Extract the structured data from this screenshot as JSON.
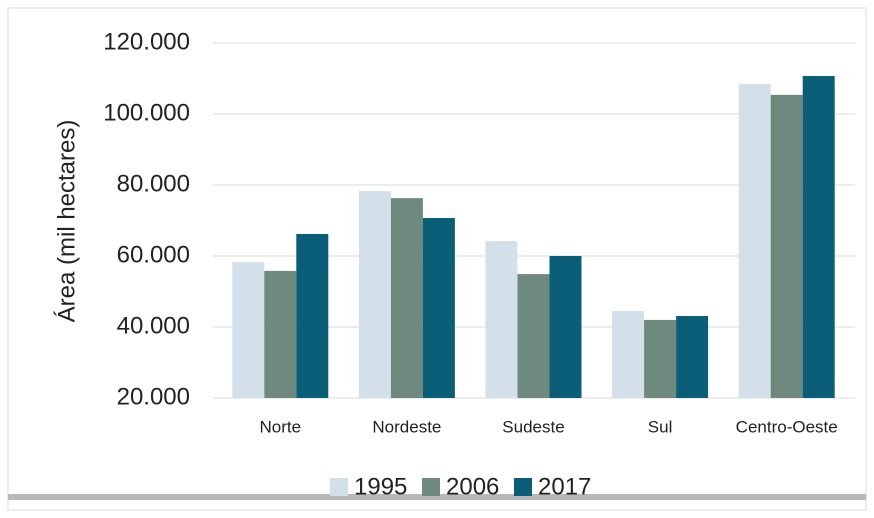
{
  "chart_data": {
    "type": "bar",
    "ylabel": "Área (mil hectares)",
    "categories": [
      "Norte",
      "Nordeste",
      "Sudeste",
      "Sul",
      "Centro-Oeste"
    ],
    "series": [
      {
        "name": "1995",
        "color": "#d3e0ea",
        "values": [
          58300,
          78300,
          64200,
          44500,
          108500
        ]
      },
      {
        "name": "2006",
        "color": "#6e8a7e",
        "values": [
          55800,
          76300,
          54900,
          42000,
          105400
        ]
      },
      {
        "name": "2017",
        "color": "#0b5e78",
        "values": [
          66200,
          70700,
          60000,
          43100,
          110700
        ]
      }
    ],
    "ylim": [
      20000,
      120000
    ],
    "yticks": [
      {
        "value": 20000,
        "label": "20.000"
      },
      {
        "value": 40000,
        "label": "40.000"
      },
      {
        "value": 60000,
        "label": "60.000"
      },
      {
        "value": 80000,
        "label": "80.000"
      },
      {
        "value": 100000,
        "label": "100.000"
      },
      {
        "value": 120000,
        "label": "120.000"
      }
    ],
    "grid": true,
    "legend": "bottom"
  }
}
